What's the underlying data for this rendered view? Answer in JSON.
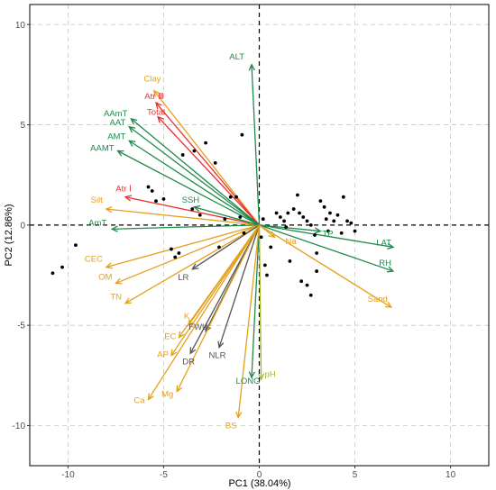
{
  "chart_data": {
    "type": "scatter",
    "subtype": "pca-biplot",
    "xlabel": "PC1 (38.04%)",
    "ylabel": "PC2 (12.86%)",
    "xlim": [
      -12,
      12
    ],
    "ylim": [
      -12,
      11
    ],
    "xticks": [
      -10,
      -5,
      0,
      5,
      10
    ],
    "yticks": [
      -10,
      -5,
      0,
      5,
      10
    ],
    "xtick_labels": [
      "-10",
      "-5",
      "0",
      "5",
      "10"
    ],
    "ytick_labels": [
      "-10",
      "-5",
      "0",
      "5",
      "10"
    ],
    "grid": true,
    "colors": {
      "green": "#1f8a4c",
      "orange": "#e3a01b",
      "red": "#e8302f",
      "dark": "#555555",
      "olive": "#a9b81f",
      "points": "#000000"
    },
    "points": [
      [
        -10.8,
        -2.4
      ],
      [
        -10.3,
        -2.1
      ],
      [
        -9.6,
        -1.0
      ],
      [
        -5.8,
        1.9
      ],
      [
        -5.6,
        1.7
      ],
      [
        -5.4,
        1.2
      ],
      [
        -5.0,
        1.3
      ],
      [
        -4.6,
        -1.2
      ],
      [
        -4.4,
        -1.6
      ],
      [
        -4.2,
        -1.4
      ],
      [
        -4.0,
        3.5
      ],
      [
        -3.5,
        0.8
      ],
      [
        -3.4,
        3.7
      ],
      [
        -3.1,
        0.5
      ],
      [
        -2.8,
        4.1
      ],
      [
        -2.3,
        3.1
      ],
      [
        -2.1,
        -1.1
      ],
      [
        -1.8,
        0.3
      ],
      [
        -1.5,
        1.4
      ],
      [
        -1.2,
        1.4
      ],
      [
        -1.0,
        0.4
      ],
      [
        -0.8,
        -0.4
      ],
      [
        -0.9,
        4.5
      ],
      [
        0.2,
        0.3
      ],
      [
        0.1,
        -0.6
      ],
      [
        0.3,
        -2.0
      ],
      [
        0.4,
        -2.5
      ],
      [
        0.6,
        -1.1
      ],
      [
        0.9,
        0.6
      ],
      [
        1.1,
        0.4
      ],
      [
        1.3,
        0.2
      ],
      [
        1.4,
        -0.1
      ],
      [
        1.5,
        0.6
      ],
      [
        1.8,
        0.8
      ],
      [
        2.0,
        1.5
      ],
      [
        2.1,
        0.6
      ],
      [
        2.3,
        0.4
      ],
      [
        2.5,
        0.2
      ],
      [
        2.7,
        0.0
      ],
      [
        2.9,
        -0.5
      ],
      [
        3.0,
        -1.4
      ],
      [
        3.2,
        1.2
      ],
      [
        3.4,
        0.9
      ],
      [
        3.5,
        0.3
      ],
      [
        3.7,
        0.6
      ],
      [
        3.9,
        0.2
      ],
      [
        4.1,
        0.5
      ],
      [
        4.3,
        -0.4
      ],
      [
        4.4,
        1.4
      ],
      [
        4.6,
        0.2
      ],
      [
        4.8,
        0.1
      ],
      [
        5.0,
        -0.3
      ],
      [
        2.2,
        -2.8
      ],
      [
        2.5,
        -3.0
      ],
      [
        2.7,
        -3.5
      ],
      [
        3.0,
        -2.3
      ],
      [
        1.6,
        -1.8
      ],
      [
        3.6,
        -0.3
      ]
    ],
    "vectors": [
      {
        "name": "ALT",
        "x": -0.4,
        "y": 8.0,
        "color": "green"
      },
      {
        "name": "Clay",
        "x": -5.5,
        "y": 6.7,
        "color": "orange"
      },
      {
        "name": "Atr Ⅲ",
        "x": -5.4,
        "y": 6.1,
        "color": "red"
      },
      {
        "name": "Total",
        "x": -5.3,
        "y": 5.4,
        "color": "red"
      },
      {
        "name": "AAmT",
        "x": -6.7,
        "y": 5.3,
        "color": "green"
      },
      {
        "name": "AAT",
        "x": -6.8,
        "y": 4.9,
        "color": "green"
      },
      {
        "name": "AMT",
        "x": -6.8,
        "y": 4.2,
        "color": "green"
      },
      {
        "name": "AAMT",
        "x": -7.4,
        "y": 3.7,
        "color": "green"
      },
      {
        "name": "Atr Ⅰ",
        "x": -7.0,
        "y": 1.4,
        "color": "red"
      },
      {
        "name": "Silt",
        "x": -8.0,
        "y": 0.8,
        "color": "orange"
      },
      {
        "name": "SSH",
        "x": -3.4,
        "y": 0.9,
        "color": "green"
      },
      {
        "name": "AmT",
        "x": -7.7,
        "y": -0.2,
        "color": "green"
      },
      {
        "name": "CEC",
        "x": -8.0,
        "y": -2.1,
        "color": "orange"
      },
      {
        "name": "OM",
        "x": -7.5,
        "y": -2.9,
        "color": "orange"
      },
      {
        "name": "TN",
        "x": -7.0,
        "y": -3.9,
        "color": "orange"
      },
      {
        "name": "LR",
        "x": -3.5,
        "y": -2.2,
        "color": "dark"
      },
      {
        "name": "K",
        "x": -3.7,
        "y": -5.0,
        "color": "orange"
      },
      {
        "name": "FWU",
        "x": -2.8,
        "y": -5.3,
        "color": "dark"
      },
      {
        "name": "EC",
        "x": -4.2,
        "y": -5.6,
        "color": "orange"
      },
      {
        "name": "AP",
        "x": -4.6,
        "y": -6.5,
        "color": "orange"
      },
      {
        "name": "DR",
        "x": -3.6,
        "y": -6.4,
        "color": "dark"
      },
      {
        "name": "NLR",
        "x": -2.1,
        "y": -6.1,
        "color": "dark"
      },
      {
        "name": "Mg",
        "x": -4.3,
        "y": -8.3,
        "color": "orange"
      },
      {
        "name": "Ca",
        "x": -5.8,
        "y": -8.7,
        "color": "orange"
      },
      {
        "name": "LONG",
        "x": -0.4,
        "y": -7.6,
        "color": "green"
      },
      {
        "name": "pH",
        "x": 0.1,
        "y": -7.7,
        "color": "olive"
      },
      {
        "name": "BS",
        "x": -1.1,
        "y": -9.6,
        "color": "orange"
      },
      {
        "name": "Na",
        "x": 0.8,
        "y": -0.6,
        "color": "orange"
      },
      {
        "name": "TP",
        "x": 3.2,
        "y": -0.3,
        "color": "green"
      },
      {
        "name": "LAT",
        "x": 7.0,
        "y": -1.1,
        "color": "green"
      },
      {
        "name": "RH",
        "x": 7.0,
        "y": -2.3,
        "color": "green"
      },
      {
        "name": "Sand",
        "x": 6.9,
        "y": -4.1,
        "color": "orange"
      }
    ]
  }
}
